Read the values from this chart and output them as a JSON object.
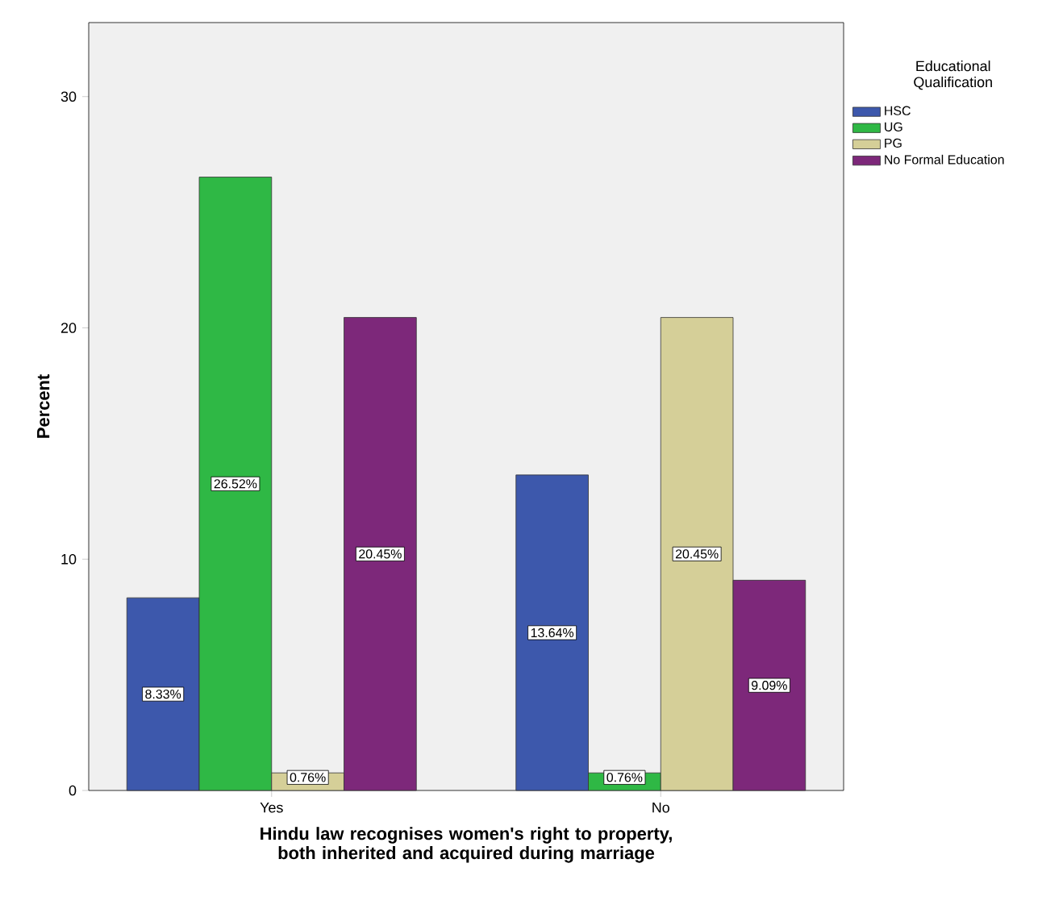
{
  "chart_data": {
    "type": "bar",
    "xlabel": "Hindu law recognises women's right to property, both inherited and acquired during marriage",
    "ylabel": "Percent",
    "legend_title": "Educational Qualification",
    "legend": "right",
    "categories": [
      "Yes",
      "No"
    ],
    "series": [
      {
        "name": "HSC",
        "color": "#3d58ac",
        "values": [
          8.33,
          13.64
        ],
        "value_labels": [
          "8.33%",
          "13.64%"
        ]
      },
      {
        "name": "UG",
        "color": "#2fb845",
        "values": [
          26.52,
          0.76
        ],
        "value_labels": [
          "26.52%",
          "0.76%"
        ]
      },
      {
        "name": "PG",
        "color": "#d5cf98",
        "values": [
          0.76,
          20.45
        ],
        "value_labels": [
          "0.76%",
          "20.45%"
        ]
      },
      {
        "name": "No Formal Education",
        "color": "#7d287a",
        "values": [
          20.45,
          9.09
        ],
        "value_labels": [
          "20.45%",
          "9.09%"
        ]
      }
    ],
    "ylim": [
      0,
      33.2
    ],
    "yticks": [
      0,
      10,
      20,
      30
    ],
    "grid": false
  }
}
